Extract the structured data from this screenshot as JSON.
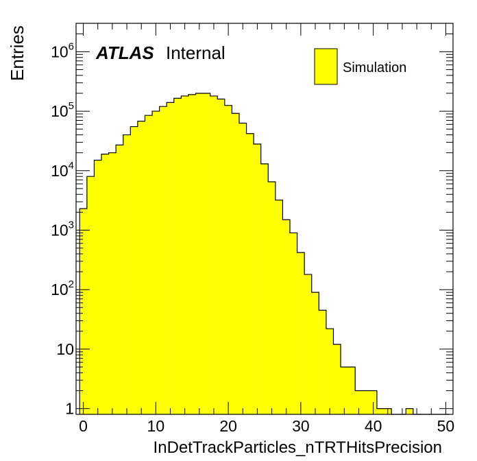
{
  "chart_data": {
    "type": "bar",
    "histogram": true,
    "xlabel": "InDetTrackParticles_nTRTHitsPrecision",
    "ylabel": "Entries",
    "xlim": [
      -1,
      51
    ],
    "ylim": [
      0.8,
      3000000
    ],
    "yscale": "log",
    "x_ticks": [
      0,
      10,
      20,
      30,
      40,
      50
    ],
    "y_ticks": [
      {
        "value": 1,
        "base": "1",
        "exp": ""
      },
      {
        "value": 10,
        "base": "10",
        "exp": ""
      },
      {
        "value": 100,
        "base": "10",
        "exp": "2"
      },
      {
        "value": 1000,
        "base": "10",
        "exp": "3"
      },
      {
        "value": 10000,
        "base": "10",
        "exp": "4"
      },
      {
        "value": 100000,
        "base": "10",
        "exp": "5"
      },
      {
        "value": 1000000,
        "base": "10",
        "exp": "6"
      }
    ],
    "bin_edges": [
      -0.5,
      0.5,
      1.5,
      2.5,
      3.5,
      4.5,
      5.5,
      6.5,
      7.5,
      8.5,
      9.5,
      10.5,
      11.5,
      12.5,
      13.5,
      14.5,
      15.5,
      16.5,
      17.5,
      18.5,
      19.5,
      20.5,
      21.5,
      22.5,
      23.5,
      24.5,
      25.5,
      26.5,
      27.5,
      28.5,
      29.5,
      30.5,
      31.5,
      32.5,
      33.5,
      34.5,
      35.5,
      36.5,
      37.5,
      38.5,
      39.5,
      40.5,
      41.5,
      42.5,
      43.5,
      44.5,
      45.5,
      46.5,
      47.5,
      48.5,
      49.5,
      50.5
    ],
    "values": [
      2300,
      8000,
      15000,
      19000,
      20000,
      27000,
      40000,
      55000,
      68000,
      85000,
      100000,
      120000,
      140000,
      165000,
      180000,
      190000,
      200000,
      200000,
      180000,
      160000,
      125000,
      92000,
      63000,
      42000,
      28000,
      13000,
      6500,
      3200,
      1500,
      900,
      420,
      180,
      90,
      45,
      22,
      12,
      5,
      5,
      2,
      2,
      2,
      1,
      1,
      0,
      0,
      1,
      0,
      0,
      0,
      0,
      0
    ],
    "series": [
      {
        "name": "Simulation",
        "color": "#ffff00"
      }
    ],
    "legend_position": "top-right",
    "grid": false,
    "annotations": [
      {
        "bold_italic": "ATLAS",
        "text": "Internal"
      }
    ]
  }
}
